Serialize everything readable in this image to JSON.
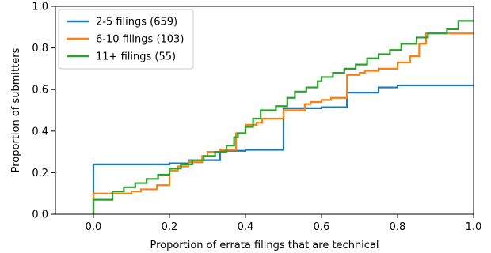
{
  "chart_data": {
    "type": "line",
    "step": "post",
    "xlabel": "Proportion of errata filings that are technical",
    "ylabel": "Proportion of submitters",
    "xlim": [
      -0.1,
      1.0
    ],
    "ylim": [
      0.0,
      1.0
    ],
    "xticks": [
      "0.0",
      "0.2",
      "0.4",
      "0.6",
      "0.8",
      "1.0"
    ],
    "yticks": [
      "0.0",
      "0.2",
      "0.4",
      "0.6",
      "0.8",
      "1.0"
    ],
    "grid": false,
    "legend_position": "top-left",
    "series": [
      {
        "name": "2-5 filings (659)",
        "color": "#1f77b4",
        "x": [
          0.0,
          0.0,
          0.2,
          0.25,
          0.333,
          0.4,
          0.5,
          0.6,
          0.667,
          0.75,
          0.8,
          1.0
        ],
        "y": [
          0.0,
          0.24,
          0.245,
          0.26,
          0.305,
          0.31,
          0.51,
          0.515,
          0.585,
          0.61,
          0.62,
          0.62
        ]
      },
      {
        "name": "6-10 filings (103)",
        "color": "#ff7f0e",
        "x": [
          0.0,
          0.0,
          0.1,
          0.125,
          0.167,
          0.2,
          0.222,
          0.25,
          0.286,
          0.3,
          0.333,
          0.375,
          0.4,
          0.429,
          0.444,
          0.5,
          0.556,
          0.571,
          0.6,
          0.625,
          0.667,
          0.7,
          0.714,
          0.75,
          0.8,
          0.833,
          0.857,
          0.875,
          0.9,
          1.0
        ],
        "y": [
          0.0,
          0.1,
          0.11,
          0.12,
          0.14,
          0.21,
          0.23,
          0.25,
          0.28,
          0.3,
          0.31,
          0.39,
          0.43,
          0.44,
          0.46,
          0.5,
          0.53,
          0.54,
          0.55,
          0.56,
          0.67,
          0.68,
          0.69,
          0.7,
          0.73,
          0.76,
          0.82,
          0.87,
          0.87,
          0.87
        ]
      },
      {
        "name": "11+ filings (55)",
        "color": "#2ca02c",
        "x": [
          0.0,
          0.0,
          0.05,
          0.08,
          0.11,
          0.14,
          0.17,
          0.2,
          0.23,
          0.26,
          0.29,
          0.32,
          0.35,
          0.37,
          0.38,
          0.4,
          0.42,
          0.44,
          0.48,
          0.51,
          0.53,
          0.56,
          0.59,
          0.6,
          0.63,
          0.66,
          0.69,
          0.72,
          0.75,
          0.78,
          0.81,
          0.85,
          0.88,
          0.9,
          0.93,
          0.96,
          1.0
        ],
        "y": [
          0.0,
          0.07,
          0.11,
          0.13,
          0.15,
          0.17,
          0.19,
          0.22,
          0.24,
          0.26,
          0.28,
          0.3,
          0.33,
          0.37,
          0.39,
          0.42,
          0.46,
          0.5,
          0.52,
          0.56,
          0.59,
          0.61,
          0.64,
          0.66,
          0.68,
          0.7,
          0.72,
          0.75,
          0.77,
          0.79,
          0.82,
          0.85,
          0.87,
          0.87,
          0.89,
          0.93,
          0.93
        ]
      }
    ]
  }
}
